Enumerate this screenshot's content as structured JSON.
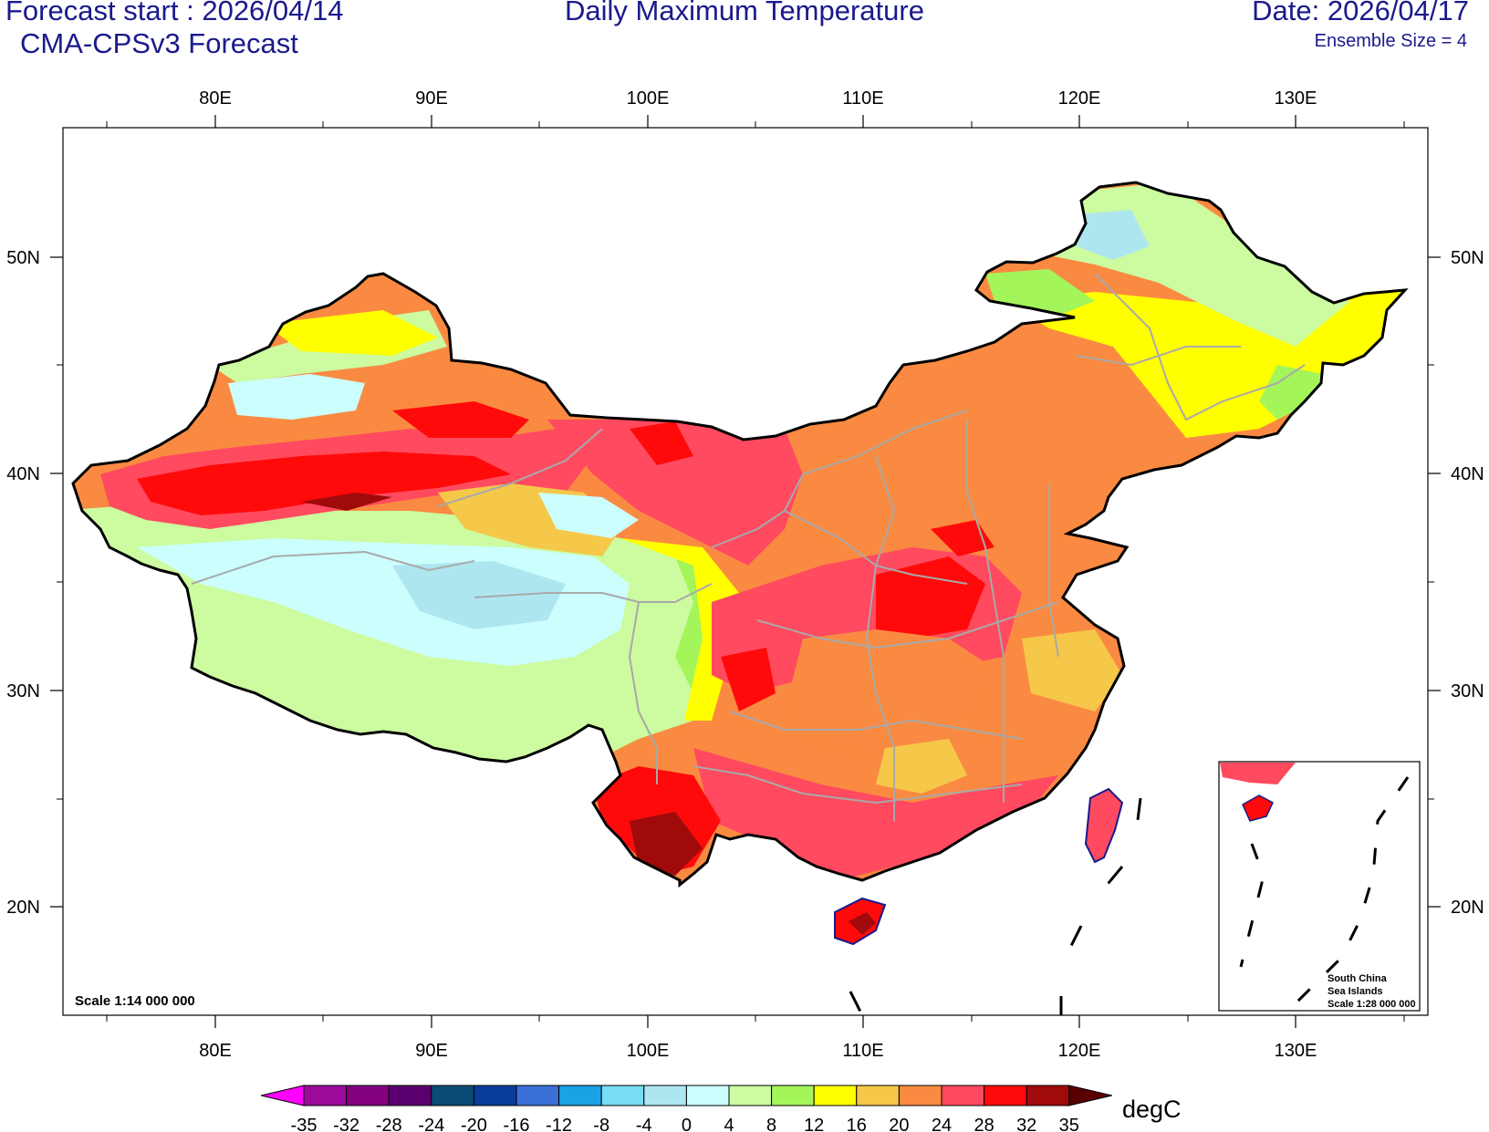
{
  "header": {
    "forecast_start": "Forecast start : 2026/04/14",
    "model": "CMA-CPSv3 Forecast",
    "title": "Daily Maximum Temperature",
    "date": "Date: 2026/04/17",
    "ensemble": "Ensemble Size = 4"
  },
  "map": {
    "lon_labels": [
      "80E",
      "90E",
      "100E",
      "110E",
      "120E",
      "130E"
    ],
    "lat_labels": [
      "50N",
      "40N",
      "30N",
      "20N"
    ],
    "scale_main": "Scale 1:14 000 000",
    "inset_label_1": "South China",
    "inset_label_2": "Sea Islands",
    "inset_scale": "Scale 1:28 000 000"
  },
  "colorbar": {
    "unit": "degC",
    "tick_labels": [
      "-35",
      "-32",
      "-28",
      "-24",
      "-20",
      "-16",
      "-12",
      "-8",
      "-4",
      "0",
      "4",
      "8",
      "12",
      "16",
      "20",
      "24",
      "28",
      "32",
      "35"
    ],
    "colors": [
      "#ff00ff",
      "#9b0a9b",
      "#83007f",
      "#5a006e",
      "#0a4b73",
      "#0a3c9b",
      "#3a6fd6",
      "#1aa2e6",
      "#78dcf5",
      "#aee6f0",
      "#ccfefe",
      "#ccfba0",
      "#a4f55a",
      "#ffff00",
      "#f5c84a",
      "#fa8a41",
      "#ff4a5f",
      "#ff0a0a",
      "#a00a0a",
      "#5a0000"
    ]
  }
}
